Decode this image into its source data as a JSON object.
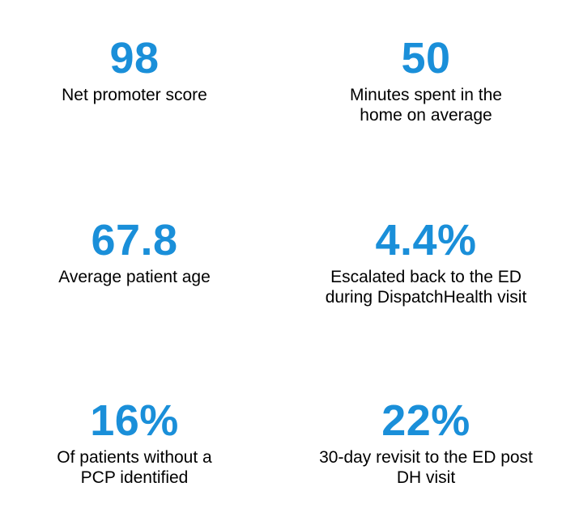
{
  "accent_color": "#1a8fd9",
  "stats": [
    {
      "value": "98",
      "label": "Net promoter score"
    },
    {
      "value": "50",
      "label": "Minutes spent in the home on average"
    },
    {
      "value": "67.8",
      "label": "Average patient age"
    },
    {
      "value": "4.4%",
      "label": "Escalated back to the ED during DispatchHealth visit"
    },
    {
      "value": "16%",
      "label": "Of patients without a PCP identified"
    },
    {
      "value": "22%",
      "label": "30-day revisit to the ED post DH visit"
    }
  ]
}
